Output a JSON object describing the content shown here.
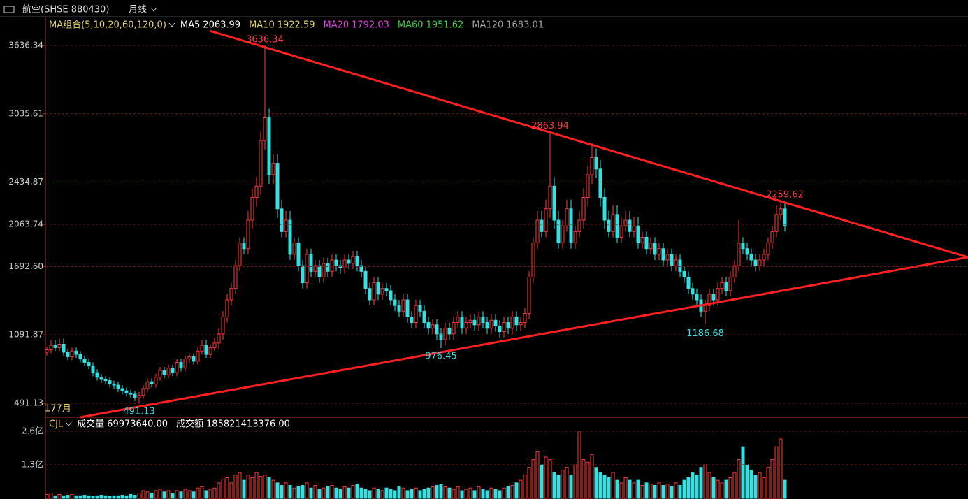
{
  "header": {
    "title": "航空(SHSE 880430)",
    "period": "月线"
  },
  "chart_data": {
    "type": "candlestick",
    "ma_legend": [
      {
        "name": "MA组合(5,10,20,60,120,0)",
        "color": "#e6d36a"
      },
      {
        "name": "MA5",
        "value": "2063.99",
        "color": "#ffffff"
      },
      {
        "name": "MA10",
        "value": "1922.59",
        "color": "#e6d36a"
      },
      {
        "name": "MA20",
        "value": "1792.03",
        "color": "#e040e0"
      },
      {
        "name": "MA60",
        "value": "1951.62",
        "color": "#40d040"
      },
      {
        "name": "MA120",
        "value": "1683.01",
        "color": "#a0a0a0"
      }
    ],
    "x_label": "177月",
    "ylim": [
      368,
      3759
    ],
    "yticks": [
      491.13,
      1091.87,
      {
        "value": 1692.6,
        "label": "1692.60"
      },
      2063.74,
      2434.87,
      3035.61,
      3636.34
    ],
    "up_color": "#ff3b3b",
    "down_color": "#36e0e0",
    "candles": [
      [
        940,
        990,
        910,
        960
      ],
      [
        960,
        1050,
        930,
        1000
      ],
      [
        1000,
        1050,
        950,
        980
      ],
      [
        980,
        1060,
        950,
        1010
      ],
      [
        1010,
        1060,
        910,
        940
      ],
      [
        940,
        970,
        870,
        900
      ],
      [
        900,
        980,
        870,
        950
      ],
      [
        950,
        980,
        890,
        920
      ],
      [
        920,
        950,
        850,
        880
      ],
      [
        880,
        910,
        820,
        850
      ],
      [
        850,
        880,
        790,
        820
      ],
      [
        820,
        850,
        730,
        760
      ],
      [
        760,
        790,
        690,
        720
      ],
      [
        720,
        750,
        670,
        700
      ],
      [
        700,
        730,
        660,
        690
      ],
      [
        690,
        720,
        630,
        660
      ],
      [
        660,
        690,
        620,
        650
      ],
      [
        650,
        680,
        590,
        620
      ],
      [
        620,
        650,
        570,
        600
      ],
      [
        600,
        630,
        550,
        580
      ],
      [
        580,
        610,
        540,
        570
      ],
      [
        570,
        600,
        510,
        540
      ],
      [
        540,
        590,
        491.13,
        560
      ],
      [
        560,
        650,
        530,
        620
      ],
      [
        620,
        710,
        590,
        680
      ],
      [
        680,
        710,
        630,
        660
      ],
      [
        660,
        750,
        630,
        720
      ],
      [
        720,
        810,
        690,
        780
      ],
      [
        780,
        810,
        710,
        740
      ],
      [
        740,
        830,
        710,
        800
      ],
      [
        800,
        830,
        730,
        760
      ],
      [
        760,
        880,
        730,
        850
      ],
      [
        850,
        880,
        770,
        800
      ],
      [
        800,
        910,
        770,
        880
      ],
      [
        880,
        930,
        850,
        900
      ],
      [
        900,
        930,
        830,
        860
      ],
      [
        860,
        980,
        830,
        950
      ],
      [
        950,
        1050,
        920,
        1000
      ],
      [
        1000,
        1050,
        890,
        920
      ],
      [
        920,
        1010,
        890,
        980
      ],
      [
        980,
        1070,
        950,
        1020
      ],
      [
        1020,
        1150,
        970,
        1100
      ],
      [
        1100,
        1300,
        1050,
        1250
      ],
      [
        1250,
        1450,
        1200,
        1400
      ],
      [
        1400,
        1550,
        1350,
        1500
      ],
      [
        1500,
        1750,
        1450,
        1700
      ],
      [
        1700,
        1950,
        1650,
        1900
      ],
      [
        1900,
        1950,
        1800,
        1850
      ],
      [
        1850,
        2180,
        1800,
        2100
      ],
      [
        2100,
        2380,
        2020,
        2300
      ],
      [
        2300,
        2480,
        2220,
        2400
      ],
      [
        2400,
        2880,
        2320,
        2800
      ],
      [
        2800,
        3636.34,
        2720,
        3000
      ],
      [
        3000,
        3080,
        2420,
        2500
      ],
      [
        2500,
        2680,
        2420,
        2600
      ],
      [
        2600,
        2680,
        2120,
        2200
      ],
      [
        2200,
        2280,
        1950,
        2000
      ],
      [
        2000,
        2180,
        1950,
        2100
      ],
      [
        2100,
        2180,
        1750,
        1800
      ],
      [
        1800,
        1950,
        1750,
        1900
      ],
      [
        1900,
        1950,
        1650,
        1700
      ],
      [
        1700,
        1750,
        1500,
        1550
      ],
      [
        1550,
        1850,
        1500,
        1800
      ],
      [
        1800,
        1850,
        1600,
        1650
      ],
      [
        1650,
        1750,
        1600,
        1700
      ],
      [
        1700,
        1750,
        1550,
        1600
      ],
      [
        1600,
        1770,
        1550,
        1720
      ],
      [
        1720,
        1770,
        1600,
        1650
      ],
      [
        1650,
        1800,
        1600,
        1750
      ],
      [
        1750,
        1800,
        1650,
        1700
      ],
      [
        1700,
        1750,
        1630,
        1680
      ],
      [
        1680,
        1800,
        1630,
        1750
      ],
      [
        1750,
        1800,
        1670,
        1720
      ],
      [
        1720,
        1830,
        1670,
        1780
      ],
      [
        1780,
        1830,
        1650,
        1700
      ],
      [
        1700,
        1750,
        1600,
        1650
      ],
      [
        1650,
        1700,
        1450,
        1500
      ],
      [
        1500,
        1550,
        1350,
        1400
      ],
      [
        1400,
        1600,
        1350,
        1550
      ],
      [
        1550,
        1600,
        1400,
        1450
      ],
      [
        1450,
        1550,
        1400,
        1500
      ],
      [
        1500,
        1550,
        1430,
        1480
      ],
      [
        1480,
        1530,
        1350,
        1400
      ],
      [
        1400,
        1450,
        1300,
        1350
      ],
      [
        1350,
        1400,
        1250,
        1300
      ],
      [
        1300,
        1450,
        1250,
        1400
      ],
      [
        1400,
        1450,
        1200,
        1250
      ],
      [
        1250,
        1300,
        1150,
        1200
      ],
      [
        1200,
        1400,
        1150,
        1350
      ],
      [
        1350,
        1400,
        1250,
        1300
      ],
      [
        1300,
        1350,
        1150,
        1200
      ],
      [
        1200,
        1250,
        1100,
        1150
      ],
      [
        1150,
        1230,
        1100,
        1180
      ],
      [
        1180,
        1230,
        1050,
        1100
      ],
      [
        1100,
        1150,
        976.45,
        1050
      ],
      [
        1050,
        1200,
        1000,
        1150
      ],
      [
        1150,
        1200,
        1050,
        1100
      ],
      [
        1100,
        1250,
        1050,
        1200
      ],
      [
        1200,
        1300,
        1150,
        1250
      ],
      [
        1250,
        1300,
        1100,
        1150
      ],
      [
        1150,
        1250,
        1100,
        1200
      ],
      [
        1200,
        1270,
        1150,
        1220
      ],
      [
        1220,
        1270,
        1130,
        1180
      ],
      [
        1180,
        1300,
        1130,
        1250
      ],
      [
        1250,
        1300,
        1150,
        1200
      ],
      [
        1200,
        1250,
        1100,
        1150
      ],
      [
        1150,
        1270,
        1100,
        1220
      ],
      [
        1220,
        1270,
        1120,
        1170
      ],
      [
        1170,
        1220,
        1070,
        1120
      ],
      [
        1120,
        1250,
        1070,
        1200
      ],
      [
        1200,
        1250,
        1100,
        1150
      ],
      [
        1150,
        1300,
        1100,
        1250
      ],
      [
        1250,
        1300,
        1130,
        1180
      ],
      [
        1180,
        1250,
        1130,
        1200
      ],
      [
        1200,
        1330,
        1150,
        1280
      ],
      [
        1280,
        1650,
        1230,
        1600
      ],
      [
        1600,
        1950,
        1550,
        1900
      ],
      [
        1900,
        2180,
        1850,
        2100
      ],
      [
        2100,
        2180,
        1950,
        2000
      ],
      [
        2000,
        2280,
        1950,
        2200
      ],
      [
        2200,
        2863.94,
        2120,
        2400
      ],
      [
        2400,
        2480,
        2020,
        2100
      ],
      [
        2100,
        2180,
        1850,
        1900
      ],
      [
        1900,
        2100,
        1850,
        2050
      ],
      [
        2050,
        2280,
        2000,
        2200
      ],
      [
        2200,
        2280,
        1850,
        1900
      ],
      [
        1900,
        2050,
        1850,
        2000
      ],
      [
        2000,
        2180,
        1950,
        2100
      ],
      [
        2100,
        2380,
        2020,
        2300
      ],
      [
        2300,
        2580,
        2220,
        2500
      ],
      [
        2500,
        2780,
        2420,
        2650
      ],
      [
        2650,
        2730,
        2470,
        2550
      ],
      [
        2550,
        2630,
        2220,
        2300
      ],
      [
        2300,
        2380,
        2020,
        2100
      ],
      [
        2100,
        2180,
        1950,
        2000
      ],
      [
        2000,
        2230,
        1950,
        2150
      ],
      [
        2150,
        2230,
        1900,
        1950
      ],
      [
        1950,
        2130,
        1900,
        2050
      ],
      [
        2050,
        2180,
        2000,
        2100
      ],
      [
        2100,
        2180,
        1950,
        2000
      ],
      [
        2000,
        2130,
        1950,
        2050
      ],
      [
        2050,
        2130,
        1850,
        1900
      ],
      [
        1900,
        2000,
        1850,
        1950
      ],
      [
        1950,
        2000,
        1800,
        1850
      ],
      [
        1850,
        1950,
        1800,
        1900
      ],
      [
        1900,
        1950,
        1750,
        1800
      ],
      [
        1800,
        1900,
        1750,
        1850
      ],
      [
        1850,
        1900,
        1700,
        1750
      ],
      [
        1750,
        1850,
        1700,
        1800
      ],
      [
        1800,
        1850,
        1650,
        1700
      ],
      [
        1700,
        1800,
        1650,
        1750
      ],
      [
        1750,
        1800,
        1600,
        1650
      ],
      [
        1650,
        1700,
        1550,
        1600
      ],
      [
        1600,
        1650,
        1450,
        1500
      ],
      [
        1500,
        1550,
        1400,
        1450
      ],
      [
        1450,
        1500,
        1350,
        1400
      ],
      [
        1400,
        1450,
        1250,
        1300
      ],
      [
        1300,
        1400,
        1186.68,
        1350
      ],
      [
        1350,
        1500,
        1300,
        1450
      ],
      [
        1450,
        1500,
        1350,
        1400
      ],
      [
        1400,
        1550,
        1350,
        1500
      ],
      [
        1500,
        1600,
        1450,
        1550
      ],
      [
        1550,
        1600,
        1430,
        1480
      ],
      [
        1480,
        1650,
        1430,
        1600
      ],
      [
        1600,
        1750,
        1550,
        1700
      ],
      [
        1700,
        2100,
        1650,
        1900
      ],
      [
        1900,
        1950,
        1800,
        1850
      ],
      [
        1850,
        1900,
        1750,
        1800
      ],
      [
        1800,
        1850,
        1700,
        1750
      ],
      [
        1750,
        1800,
        1650,
        1700
      ],
      [
        1700,
        1800,
        1650,
        1750
      ],
      [
        1750,
        1850,
        1700,
        1800
      ],
      [
        1800,
        1950,
        1750,
        1900
      ],
      [
        1900,
        2050,
        1850,
        2000
      ],
      [
        2000,
        2230,
        1950,
        2150
      ],
      [
        2150,
        2250,
        2100,
        2200
      ],
      [
        2200,
        2259.62,
        2000,
        2050
      ]
    ],
    "volume": {
      "legend": [
        {
          "name": "CJL",
          "color": "#e6d36a"
        },
        {
          "name": "成交量",
          "value": "69973640.00",
          "color": "#ffffff"
        },
        {
          "name": "成交额",
          "value": "185821413376.00",
          "color": "#ffffff"
        }
      ],
      "ylim": [
        0,
        3.06
      ],
      "yticks": [
        {
          "value": 1.3,
          "label": "1.3亿"
        },
        {
          "value": 2.6,
          "label": "2.6亿"
        }
      ],
      "values": [
        0.15,
        0.2,
        0.1,
        0.15,
        0.1,
        0.12,
        0.15,
        0.1,
        0.1,
        0.12,
        0.1,
        0.08,
        0.1,
        0.12,
        0.1,
        0.08,
        0.1,
        0.1,
        0.12,
        0.1,
        0.15,
        0.12,
        0.2,
        0.3,
        0.25,
        0.2,
        0.3,
        0.35,
        0.25,
        0.3,
        0.2,
        0.3,
        0.25,
        0.35,
        0.3,
        0.25,
        0.4,
        0.45,
        0.3,
        0.35,
        0.4,
        0.6,
        0.75,
        0.8,
        0.6,
        0.9,
        1.0,
        0.7,
        0.9,
        0.8,
        1.0,
        0.85,
        0.9,
        0.8,
        0.7,
        0.6,
        0.5,
        0.6,
        0.5,
        0.4,
        0.45,
        0.5,
        0.6,
        0.4,
        0.5,
        0.35,
        0.4,
        0.45,
        0.5,
        0.4,
        0.35,
        0.45,
        0.4,
        0.5,
        0.55,
        0.4,
        0.35,
        0.3,
        0.4,
        0.35,
        0.3,
        0.4,
        0.35,
        0.3,
        0.45,
        0.4,
        0.3,
        0.35,
        0.4,
        0.3,
        0.35,
        0.4,
        0.45,
        0.5,
        0.55,
        0.45,
        0.4,
        0.35,
        0.45,
        0.3,
        0.35,
        0.4,
        0.3,
        0.45,
        0.35,
        0.3,
        0.4,
        0.35,
        0.3,
        0.4,
        0.45,
        0.5,
        0.6,
        0.7,
        0.9,
        1.2,
        1.5,
        1.8,
        1.3,
        1.6,
        1.5,
        1.0,
        0.9,
        1.1,
        1.2,
        0.9,
        1.3,
        2.6,
        1.5,
        1.4,
        1.7,
        1.2,
        1.0,
        0.9,
        0.8,
        1.0,
        0.7,
        0.6,
        0.8,
        0.7,
        0.6,
        0.7,
        0.5,
        0.6,
        0.55,
        0.5,
        0.6,
        0.5,
        0.55,
        0.45,
        0.6,
        0.5,
        0.7,
        0.8,
        1.0,
        0.9,
        1.2,
        1.3,
        1.0,
        0.8,
        0.7,
        0.6,
        0.7,
        0.8,
        1.0,
        1.5,
        2.0,
        1.3,
        1.1,
        0.9,
        1.0,
        0.8,
        1.2,
        1.5,
        2.0,
        2.3,
        0.7
      ]
    }
  }
}
